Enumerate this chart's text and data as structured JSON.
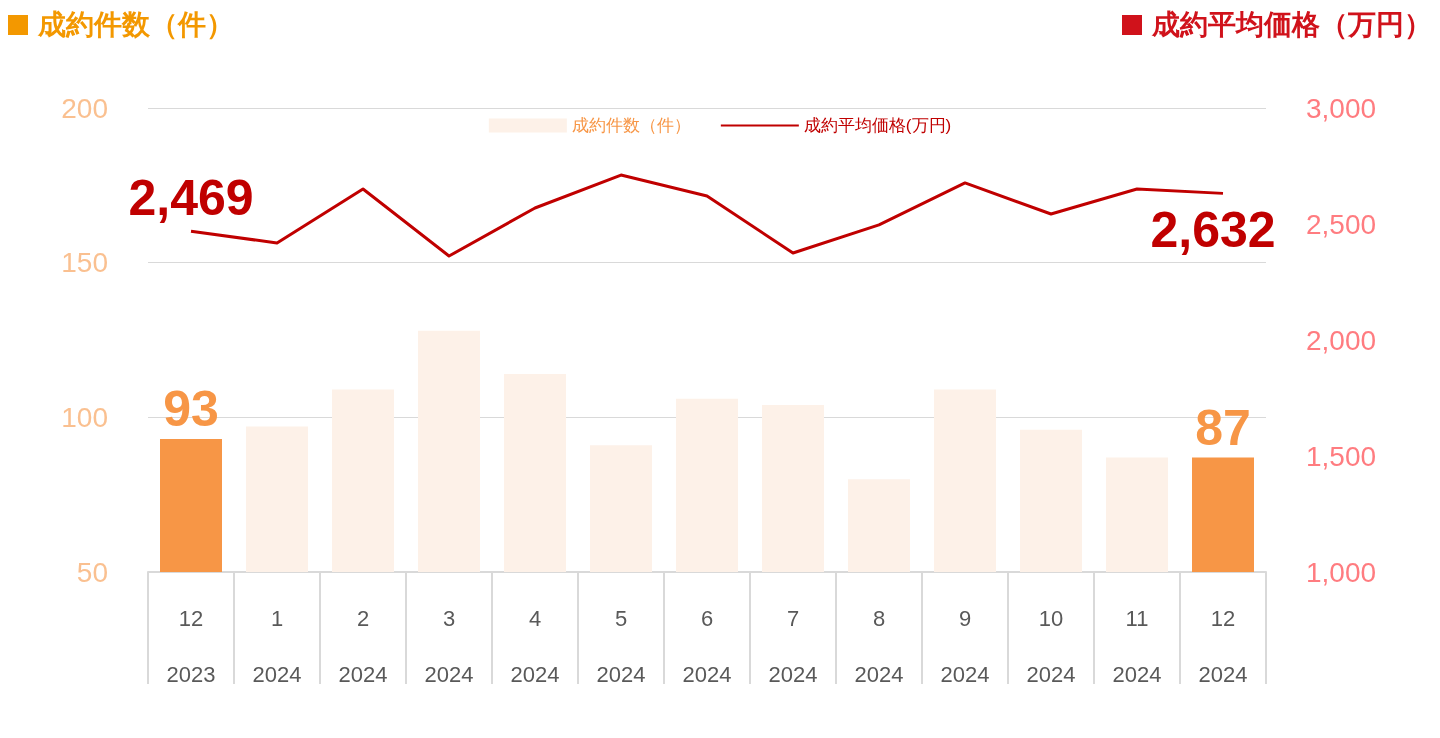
{
  "chart_data": {
    "type": "bar",
    "categories": [
      "12\n2023",
      "1\n2024",
      "2\n2024",
      "3\n2024",
      "4\n2024",
      "5\n2024",
      "6\n2024",
      "7\n2024",
      "8\n2024",
      "9\n2024",
      "10\n2024",
      "11\n2024",
      "12\n2024"
    ],
    "ylabel": "成約件数（件）",
    "y2label": "成約平均価格（万円）",
    "series": [
      {
        "name": "成約件数（件）",
        "color": "#fdf1e8",
        "colors": [
          "#f79646",
          "#fdf1e8",
          "#fdf1e8",
          "#fdf1e8",
          "#fdf1e8",
          "#fdf1e8",
          "#fdf1e8",
          "#fdf1e8",
          "#fdf1e8",
          "#fdf1e8",
          "#fdf1e8",
          "#fdf1e8",
          "#f79646"
        ],
        "values": [
          93,
          97,
          109,
          128,
          114,
          91,
          106,
          104,
          80,
          109,
          96,
          87,
          87
        ],
        "value_labels": [
          "93",
          null,
          null,
          null,
          null,
          null,
          null,
          null,
          null,
          null,
          null,
          null,
          "87"
        ]
      },
      {
        "name": "成約平均価格(万円)",
        "type": "line",
        "axis": "y2",
        "color": "#c00000",
        "values": [
          2469,
          2418,
          2651,
          2362,
          2569,
          2711,
          2621,
          2375,
          2496,
          2677,
          2543,
          2651,
          2632
        ],
        "value_labels": [
          "2,469",
          null,
          null,
          null,
          null,
          null,
          null,
          null,
          null,
          null,
          null,
          null,
          "2,632"
        ]
      }
    ],
    "ylim": [
      50,
      200
    ],
    "yticks": [
      50,
      100,
      150,
      200
    ],
    "y2lim": [
      1000,
      3000
    ],
    "y2ticks": [
      {
        "value": 1000,
        "label": "1,000"
      },
      {
        "value": 1500,
        "label": "1,500"
      },
      {
        "value": 2000,
        "label": "2,000"
      },
      {
        "value": 2500,
        "label": "2,500"
      },
      {
        "value": 3000,
        "label": "3,000"
      }
    ],
    "grid": "y",
    "legend": "top",
    "marker": "none",
    "line_style": "solid"
  }
}
